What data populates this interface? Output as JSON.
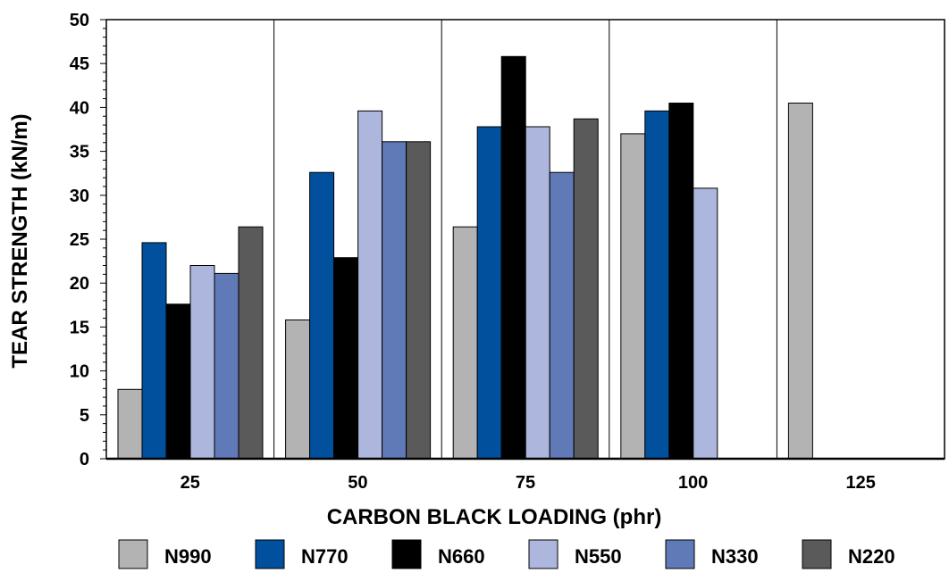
{
  "chart_data": {
    "type": "bar",
    "xlabel": "CARBON BLACK LOADING (phr)",
    "ylabel": "TEAR STRENGTH (kN/m)",
    "ylim": [
      0,
      50
    ],
    "yticks": [
      "0",
      "5",
      "10",
      "15",
      "20",
      "25",
      "30",
      "35",
      "40",
      "45",
      "50"
    ],
    "categories": [
      "25",
      "50",
      "75",
      "100",
      "125"
    ],
    "grid": "vertical category dividers",
    "legend_position": "bottom",
    "series": [
      {
        "name": "N990",
        "color": "#b3b3b3",
        "values": [
          7.9,
          15.8,
          26.4,
          37.0,
          40.5
        ]
      },
      {
        "name": "N770",
        "color": "#00509e",
        "values": [
          24.6,
          32.6,
          37.8,
          39.6,
          null
        ]
      },
      {
        "name": "N660",
        "color": "#000000",
        "values": [
          17.6,
          22.9,
          45.8,
          40.5,
          null
        ]
      },
      {
        "name": "N550",
        "color": "#adb6dc",
        "values": [
          22.0,
          39.6,
          37.8,
          30.8,
          null
        ]
      },
      {
        "name": "N330",
        "color": "#6079b7",
        "values": [
          21.1,
          36.1,
          32.6,
          null,
          null
        ]
      },
      {
        "name": "N220",
        "color": "#5a5a5a",
        "values": [
          26.4,
          36.1,
          38.7,
          null,
          null
        ]
      }
    ]
  }
}
